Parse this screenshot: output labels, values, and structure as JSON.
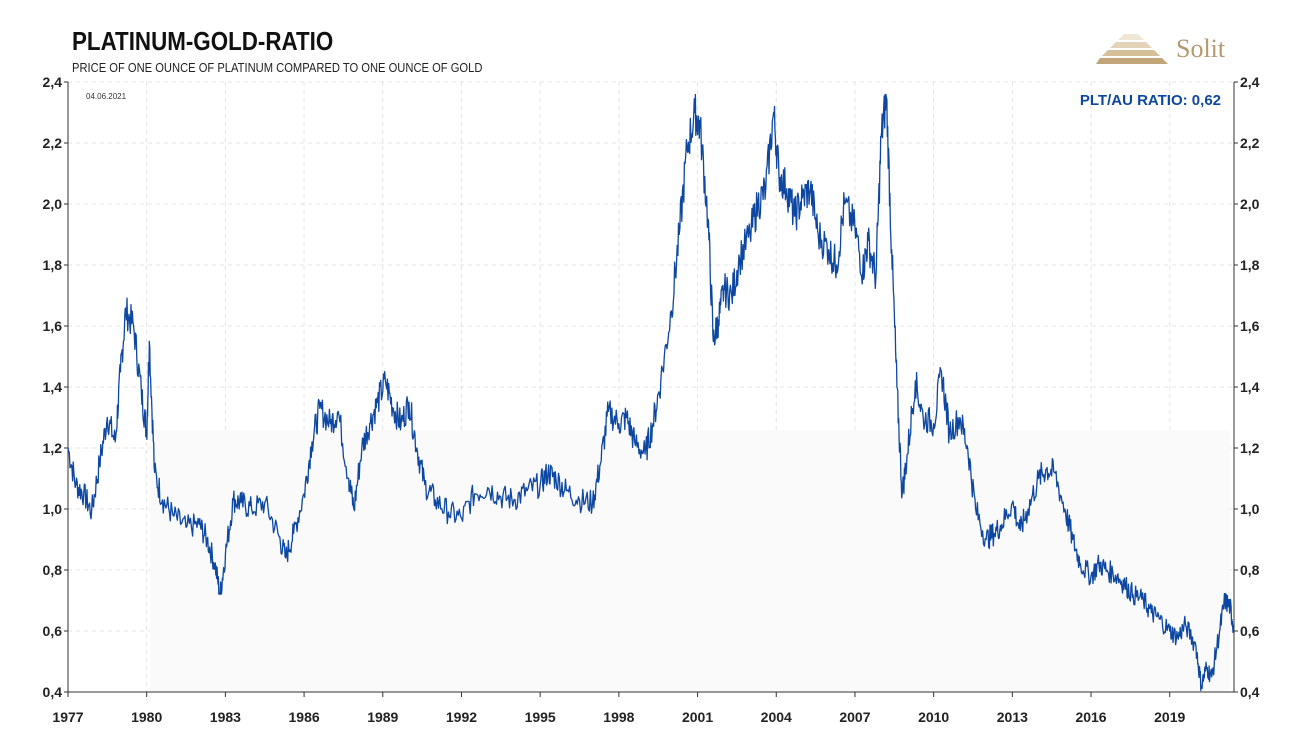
{
  "header": {
    "title": "PLATINUM-GOLD-RATIO",
    "subtitle": "PRICE OF ONE OUNCE OF PLATINUM COMPARED TO ONE OUNCE OF GOLD",
    "date": "04.06.2021",
    "ratio_label": "PLT/AU RATIO: 0,62"
  },
  "logo": {
    "text": "Solit",
    "icon": "pyramid-logo-icon",
    "color": "#b49a70"
  },
  "chart_data": {
    "type": "line",
    "title": "PLATINUM-GOLD-RATIO",
    "subtitle": "PRICE OF ONE OUNCE OF PLATINUM COMPARED TO ONE OUNCE OF GOLD",
    "xlabel": "",
    "ylabel": "",
    "xlim": [
      1977,
      2021.45
    ],
    "ylim": [
      0.4,
      2.4
    ],
    "x_ticks": [
      1977,
      1980,
      1983,
      1986,
      1989,
      1992,
      1995,
      1998,
      2001,
      2004,
      2007,
      2010,
      2013,
      2016,
      2019
    ],
    "x_tick_labels": [
      "1977",
      "1980",
      "1983",
      "1986",
      "1989",
      "1992",
      "1995",
      "1998",
      "2001",
      "2004",
      "2007",
      "2010",
      "2013",
      "2016",
      "2019"
    ],
    "y_ticks": [
      0.4,
      0.6,
      0.8,
      1.0,
      1.2,
      1.4,
      1.6,
      1.8,
      2.0,
      2.2,
      2.4
    ],
    "y_tick_labels": [
      "0,4",
      "0,6",
      "0,8",
      "1,0",
      "1,2",
      "1,4",
      "1,6",
      "1,8",
      "2,0",
      "2,2",
      "2,4"
    ],
    "grid": true,
    "line_color": "#0d47a1",
    "series": [
      {
        "x": [
          1977.0,
          1977.3,
          1977.6,
          1977.9,
          1978.2,
          1978.5,
          1978.8,
          1979.0,
          1979.2,
          1979.5,
          1979.8,
          1980.0,
          1980.1,
          1980.3,
          1980.6,
          1981.0,
          1981.5,
          1982.0,
          1982.3,
          1982.6,
          1982.8,
          1983.0,
          1983.3,
          1983.6,
          1984.0,
          1984.5,
          1985.0,
          1985.3,
          1985.6,
          1986.0,
          1986.3,
          1986.6,
          1987.0,
          1987.3,
          1987.7,
          1987.9,
          1988.2,
          1988.5,
          1988.8,
          1989.1,
          1989.4,
          1989.7,
          1990.0,
          1990.3,
          1990.6,
          1991.0,
          1991.5,
          1992.0,
          1992.5,
          1993.0,
          1993.5,
          1994.0,
          1994.5,
          1995.0,
          1995.3,
          1995.6,
          1996.0,
          1996.5,
          1997.0,
          1997.3,
          1997.6,
          1998.0,
          1998.3,
          1998.6,
          1999.0,
          1999.3,
          1999.6,
          2000.0,
          2000.3,
          2000.6,
          2000.9,
          2001.1,
          2001.4,
          2001.6,
          2001.8,
          2002.0,
          2002.3,
          2002.6,
          2003.0,
          2003.3,
          2003.6,
          2003.9,
          2004.1,
          2004.4,
          2004.7,
          2005.0,
          2005.3,
          2005.6,
          2006.0,
          2006.3,
          2006.6,
          2007.0,
          2007.3,
          2007.5,
          2007.8,
          2008.0,
          2008.2,
          2008.4,
          2008.6,
          2008.8,
          2009.0,
          2009.3,
          2009.6,
          2010.0,
          2010.3,
          2010.6,
          2011.0,
          2011.3,
          2011.6,
          2012.0,
          2012.3,
          2012.6,
          2013.0,
          2013.3,
          2013.6,
          2014.0,
          2014.3,
          2014.6,
          2015.0,
          2015.3,
          2015.6,
          2016.0,
          2016.3,
          2016.6,
          2017.0,
          2017.3,
          2017.6,
          2018.0,
          2018.3,
          2018.6,
          2019.0,
          2019.3,
          2019.6,
          2020.0,
          2020.2,
          2020.4,
          2020.6,
          2020.9,
          2021.1,
          2021.3,
          2021.42
        ],
        "values": [
          1.2,
          1.08,
          1.05,
          0.99,
          1.15,
          1.3,
          1.22,
          1.45,
          1.65,
          1.6,
          1.38,
          1.25,
          1.55,
          1.12,
          1.03,
          0.98,
          0.94,
          0.95,
          0.9,
          0.82,
          0.72,
          0.85,
          1.03,
          1.02,
          1.0,
          1.02,
          0.92,
          0.84,
          0.92,
          1.05,
          1.22,
          1.33,
          1.28,
          1.32,
          1.1,
          1.0,
          1.2,
          1.28,
          1.35,
          1.42,
          1.33,
          1.28,
          1.35,
          1.2,
          1.08,
          1.03,
          0.99,
          0.97,
          1.05,
          1.07,
          1.04,
          1.03,
          1.06,
          1.08,
          1.12,
          1.1,
          1.06,
          1.03,
          1.02,
          1.15,
          1.32,
          1.28,
          1.3,
          1.22,
          1.18,
          1.28,
          1.42,
          1.65,
          1.9,
          2.18,
          2.3,
          2.25,
          1.95,
          1.55,
          1.62,
          1.72,
          1.7,
          1.82,
          1.9,
          2.0,
          2.05,
          2.3,
          2.1,
          2.05,
          1.96,
          2.02,
          2.05,
          1.9,
          1.85,
          1.8,
          2.0,
          1.92,
          1.78,
          1.88,
          1.76,
          2.22,
          2.35,
          1.85,
          1.4,
          1.05,
          1.18,
          1.42,
          1.3,
          1.28,
          1.45,
          1.25,
          1.3,
          1.2,
          1.0,
          0.9,
          0.92,
          0.95,
          1.02,
          0.93,
          1.0,
          1.1,
          1.13,
          1.12,
          1.0,
          0.9,
          0.82,
          0.78,
          0.82,
          0.8,
          0.78,
          0.75,
          0.72,
          0.7,
          0.66,
          0.64,
          0.6,
          0.58,
          0.62,
          0.55,
          0.42,
          0.48,
          0.45,
          0.6,
          0.7,
          0.68,
          0.62
        ]
      }
    ]
  }
}
